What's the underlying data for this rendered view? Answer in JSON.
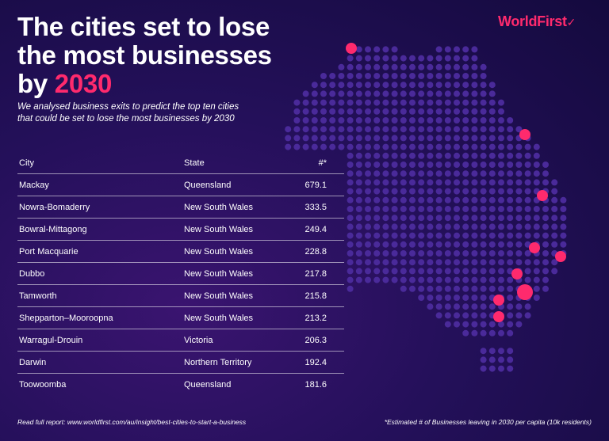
{
  "title": {
    "line1": "The cities set to lose",
    "line2": "the most businesses",
    "line3_prefix": "by ",
    "line3_accent": "2030"
  },
  "subtitle": {
    "line1": "We analysed business exits to predict the top ten cities",
    "line2": "that could be set to lose the most businesses by 2030"
  },
  "logo": {
    "text": "WorldFirst",
    "tick": "✓"
  },
  "table": {
    "headers": {
      "city": "City",
      "state": "State",
      "value": "#*"
    },
    "rows": [
      {
        "city": "Mackay",
        "state": "Queensland",
        "value": "679.1"
      },
      {
        "city": "Nowra-Bomaderry",
        "state": "New South Wales",
        "value": "333.5"
      },
      {
        "city": "Bowral-Mittagong",
        "state": "New South Wales",
        "value": "249.4"
      },
      {
        "city": "Port Macquarie",
        "state": "New South Wales",
        "value": "228.8"
      },
      {
        "city": "Dubbo",
        "state": "New South Wales",
        "value": "217.8"
      },
      {
        "city": "Tamworth",
        "state": "New South Wales",
        "value": "215.8"
      },
      {
        "city": "Shepparton–Mooroopna",
        "state": "New South Wales",
        "value": "213.2"
      },
      {
        "city": "Warragul-Drouin",
        "state": "Victoria",
        "value": "206.3"
      },
      {
        "city": "Darwin",
        "state": "Northern Territory",
        "value": "192.4"
      },
      {
        "city": "Toowoomba",
        "state": "Queensland",
        "value": "181.6"
      }
    ]
  },
  "footer": {
    "left": "Read full report: www.worldfirst.com/au/insight/best-cities-to-start-a-business",
    "right": "*Estimated # of Businesses leaving in 2030 per capita (10k residents)"
  },
  "colors": {
    "accent": "#ff2a6d",
    "dot": "#4a2a9a"
  }
}
